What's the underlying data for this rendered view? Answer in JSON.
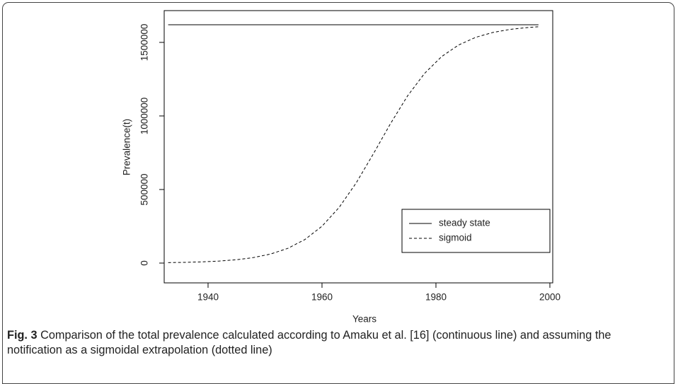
{
  "chart_data": {
    "type": "line",
    "x_label": "Years",
    "y_label": "Prevalence(t)",
    "x": [
      1933,
      1936,
      1939,
      1942,
      1945,
      1948,
      1951,
      1954,
      1957,
      1960,
      1963,
      1966,
      1969,
      1972,
      1975,
      1978,
      1981,
      1984,
      1987,
      1990,
      1993,
      1996,
      1998
    ],
    "series": [
      {
        "name": "steady state",
        "color": "#000000",
        "linestyle": "solid",
        "values": [
          1620000,
          1620000,
          1620000,
          1620000,
          1620000,
          1620000,
          1620000,
          1620000,
          1620000,
          1620000,
          1620000,
          1620000,
          1620000,
          1620000,
          1620000,
          1620000,
          1620000,
          1620000,
          1620000,
          1620000,
          1620000,
          1620000,
          1620000
        ]
      },
      {
        "name": "sigmoid",
        "color": "#000000",
        "linestyle": "dashed",
        "values": [
          3000,
          4980,
          8290,
          13760,
          22780,
          37590,
          61640,
          100120,
          160080,
          250380,
          377890,
          544720,
          741420,
          946260,
          1135250,
          1289120,
          1403690,
          1482720,
          1534680,
          1567640,
          1588240,
          1600790,
          1606190
        ]
      }
    ],
    "xlim": [
      1932.3,
      2000.5
    ],
    "ylim": [
      -134600,
      1716000
    ],
    "xticks": [
      1940,
      1960,
      1980,
      2000
    ],
    "yticks": [
      0,
      500000,
      1000000,
      1500000
    ],
    "legend": "bottom-right",
    "grid": false
  },
  "caption": {
    "label": "Fig. 3",
    "text": "Comparison of the total prevalence calculated according to Amaku et al. [16] (continuous line) and assuming the notification as a sigmoidal extrapolation (dotted line)"
  }
}
